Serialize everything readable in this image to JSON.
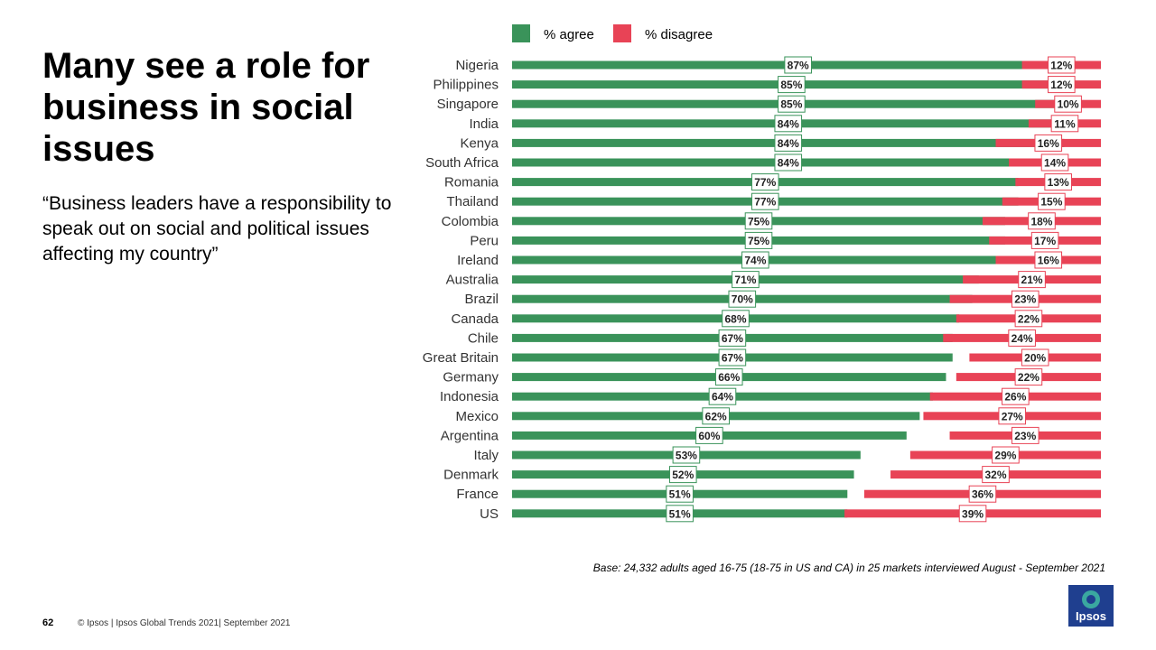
{
  "title": "Many see a role for business in social issues",
  "quote": "“Business leaders have a responsibility to speak out on social and political issues affecting my country”",
  "base_note": "Base: 24,332 adults aged 16-75 (18-75 in US and CA) in 25 markets interviewed  August - September 2021",
  "footer": {
    "page_number": "62",
    "text": "© Ipsos | Ipsos Global Trends 2021| September 2021",
    "logo_text": "Ipsos"
  },
  "colors": {
    "agree": "#3a935a",
    "disagree": "#e84356",
    "logo": "#1f3f8f"
  },
  "chart_data": {
    "type": "bar",
    "orientation": "horizontal",
    "legend_placement": "top",
    "grid": false,
    "categories": [
      "Nigeria",
      "Philippines",
      "Singapore",
      "India",
      "Kenya",
      "South Africa",
      "Romania",
      "Thailand",
      "Colombia",
      "Peru",
      "Ireland",
      "Australia",
      "Brazil",
      "Canada",
      "Chile",
      "Great Britain",
      "Germany",
      "Indonesia",
      "Mexico",
      "Argentina",
      "Italy",
      "Denmark",
      "France",
      "US"
    ],
    "series": [
      {
        "name": "% agree",
        "values": [
          87,
          85,
          85,
          84,
          84,
          84,
          77,
          77,
          75,
          75,
          74,
          71,
          70,
          68,
          67,
          67,
          66,
          64,
          62,
          60,
          53,
          52,
          51,
          51
        ]
      },
      {
        "name": "% disagree",
        "values": [
          12,
          12,
          10,
          11,
          16,
          14,
          13,
          15,
          18,
          17,
          16,
          21,
          23,
          22,
          24,
          20,
          22,
          26,
          27,
          23,
          29,
          32,
          36,
          39
        ]
      }
    ],
    "value_suffix": "%",
    "xlim": [
      0,
      100
    ]
  }
}
